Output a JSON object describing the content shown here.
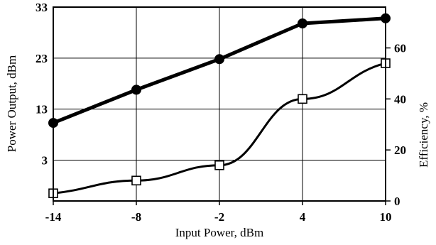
{
  "chart_data": {
    "type": "line",
    "x": [
      -14,
      -8,
      -2,
      4,
      10
    ],
    "xlabel": "Input Power, dBm",
    "ylabel_left": "Power Output, dBm",
    "ylabel_right": "Efficiency, %",
    "xlim": [
      -14,
      10
    ],
    "ylim_left": [
      -5,
      33
    ],
    "ylim_right": [
      0,
      76
    ],
    "x_ticks": [
      "-14",
      "-8",
      "-2",
      "4",
      "10"
    ],
    "y_ticks_left": [
      "3",
      "13",
      "23",
      "33"
    ],
    "y_ticks_right": [
      "0",
      "20",
      "40",
      "60"
    ],
    "grid": true,
    "series": [
      {
        "axis": "left",
        "marker": "filled-circle",
        "color": "#000000",
        "values": [
          10.3,
          16.8,
          22.8,
          29.8,
          30.8
        ]
      },
      {
        "axis": "right",
        "marker": "open-square",
        "color": "#000000",
        "values": [
          3,
          8,
          14,
          40,
          54
        ]
      }
    ]
  }
}
